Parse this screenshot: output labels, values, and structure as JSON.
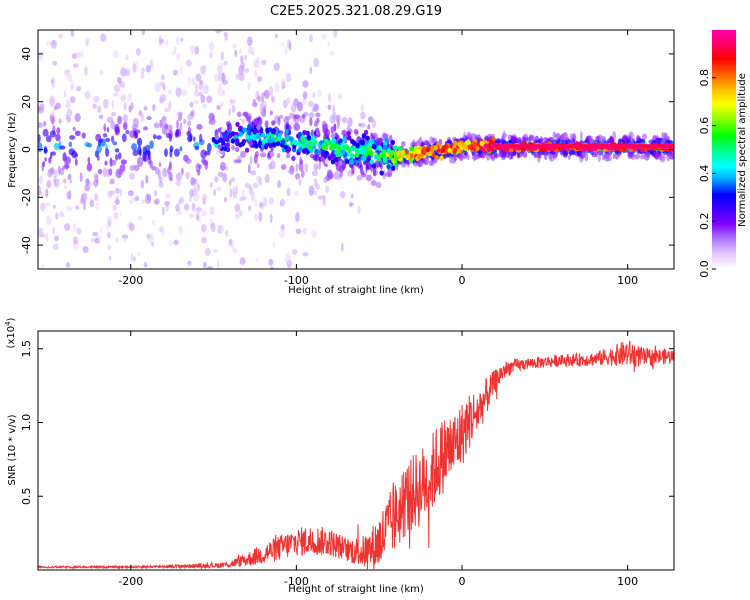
{
  "page": {
    "title": "C2E5.2025.321.08.29.G19"
  },
  "chart_data": [
    {
      "type": "heatmap",
      "xlabel": "Height of straight line (km)",
      "ylabel": "Frequency (Hz)",
      "xlim": [
        -256,
        128
      ],
      "ylim": [
        -50,
        50
      ],
      "xticks": [
        -200,
        -100,
        0,
        100
      ],
      "yticks": [
        -40,
        -20,
        0,
        20,
        40
      ],
      "ridge": {
        "x": [
          -256,
          -200,
          -150,
          -130,
          -100,
          -70,
          -50,
          -40,
          -30,
          -20,
          -10,
          0,
          10,
          20,
          50,
          80,
          100,
          128
        ],
        "frequency": [
          2,
          1,
          2,
          6,
          3,
          0,
          -2,
          -3,
          -2,
          -1,
          0,
          1,
          1,
          1,
          1,
          1,
          1,
          1
        ],
        "amplitude": [
          0.25,
          0.3,
          0.35,
          0.45,
          0.5,
          0.55,
          0.6,
          0.75,
          0.8,
          0.85,
          0.85,
          0.85,
          0.9,
          0.95,
          0.95,
          0.95,
          0.95,
          0.95
        ]
      },
      "colorbar": {
        "label": "Normalized spectral amplitude",
        "range": [
          0,
          1
        ],
        "ticks": [
          "0.0",
          "0.2",
          "0.4",
          "0.6",
          "0.8"
        ],
        "tick_values": [
          0.0,
          0.2,
          0.4,
          0.6,
          0.8
        ],
        "colors": [
          "#ffffff",
          "#e6ccff",
          "#b380ff",
          "#7f00ff",
          "#3300ff",
          "#0000ff",
          "#00b3ff",
          "#00ffff",
          "#00ff80",
          "#00ff00",
          "#80ff00",
          "#ffff00",
          "#ffbf00",
          "#ff6600",
          "#ff0000",
          "#ff0066",
          "#ff00aa"
        ]
      }
    },
    {
      "type": "line",
      "xlabel": "Height of straight line (km)",
      "ylabel": "SNR (10 * v/v)",
      "y_multiplier": "(x10",
      "y_multiplier_exp": "4",
      "y_multiplier_close": ")",
      "xlim": [
        -256,
        128
      ],
      "ylim": [
        0,
        1.62
      ],
      "xticks": [
        -200,
        -100,
        0,
        100
      ],
      "yticks": [
        0.5,
        1.0,
        1.5
      ],
      "ytick_labels": [
        "0.5",
        "1.0",
        "1.5"
      ],
      "color": "#ee3333",
      "series": [
        {
          "x": [
            -256,
            -200,
            -150,
            -140,
            -130,
            -120,
            -110,
            -100,
            -90,
            -80,
            -70,
            -60,
            -55,
            -50,
            -45,
            -40,
            -35,
            -30,
            -25,
            -20,
            -15,
            -10,
            -5,
            0,
            5,
            10,
            15,
            20,
            25,
            30,
            40,
            60,
            80,
            90,
            100,
            110,
            128
          ],
          "y": [
            0.02,
            0.02,
            0.03,
            0.04,
            0.07,
            0.11,
            0.15,
            0.19,
            0.2,
            0.19,
            0.14,
            0.12,
            0.14,
            0.19,
            0.28,
            0.36,
            0.46,
            0.52,
            0.56,
            0.62,
            0.72,
            0.8,
            0.84,
            0.92,
            1.02,
            1.08,
            1.18,
            1.28,
            1.35,
            1.38,
            1.4,
            1.42,
            1.43,
            1.45,
            1.47,
            1.44,
            1.45
          ],
          "noise": [
            0.004,
            0.004,
            0.01,
            0.015,
            0.03,
            0.045,
            0.055,
            0.06,
            0.065,
            0.06,
            0.05,
            0.07,
            0.09,
            0.12,
            0.14,
            0.15,
            0.16,
            0.16,
            0.17,
            0.17,
            0.17,
            0.16,
            0.15,
            0.14,
            0.12,
            0.1,
            0.08,
            0.05,
            0.04,
            0.03,
            0.025,
            0.025,
            0.03,
            0.04,
            0.06,
            0.04,
            0.03
          ]
        }
      ]
    }
  ]
}
